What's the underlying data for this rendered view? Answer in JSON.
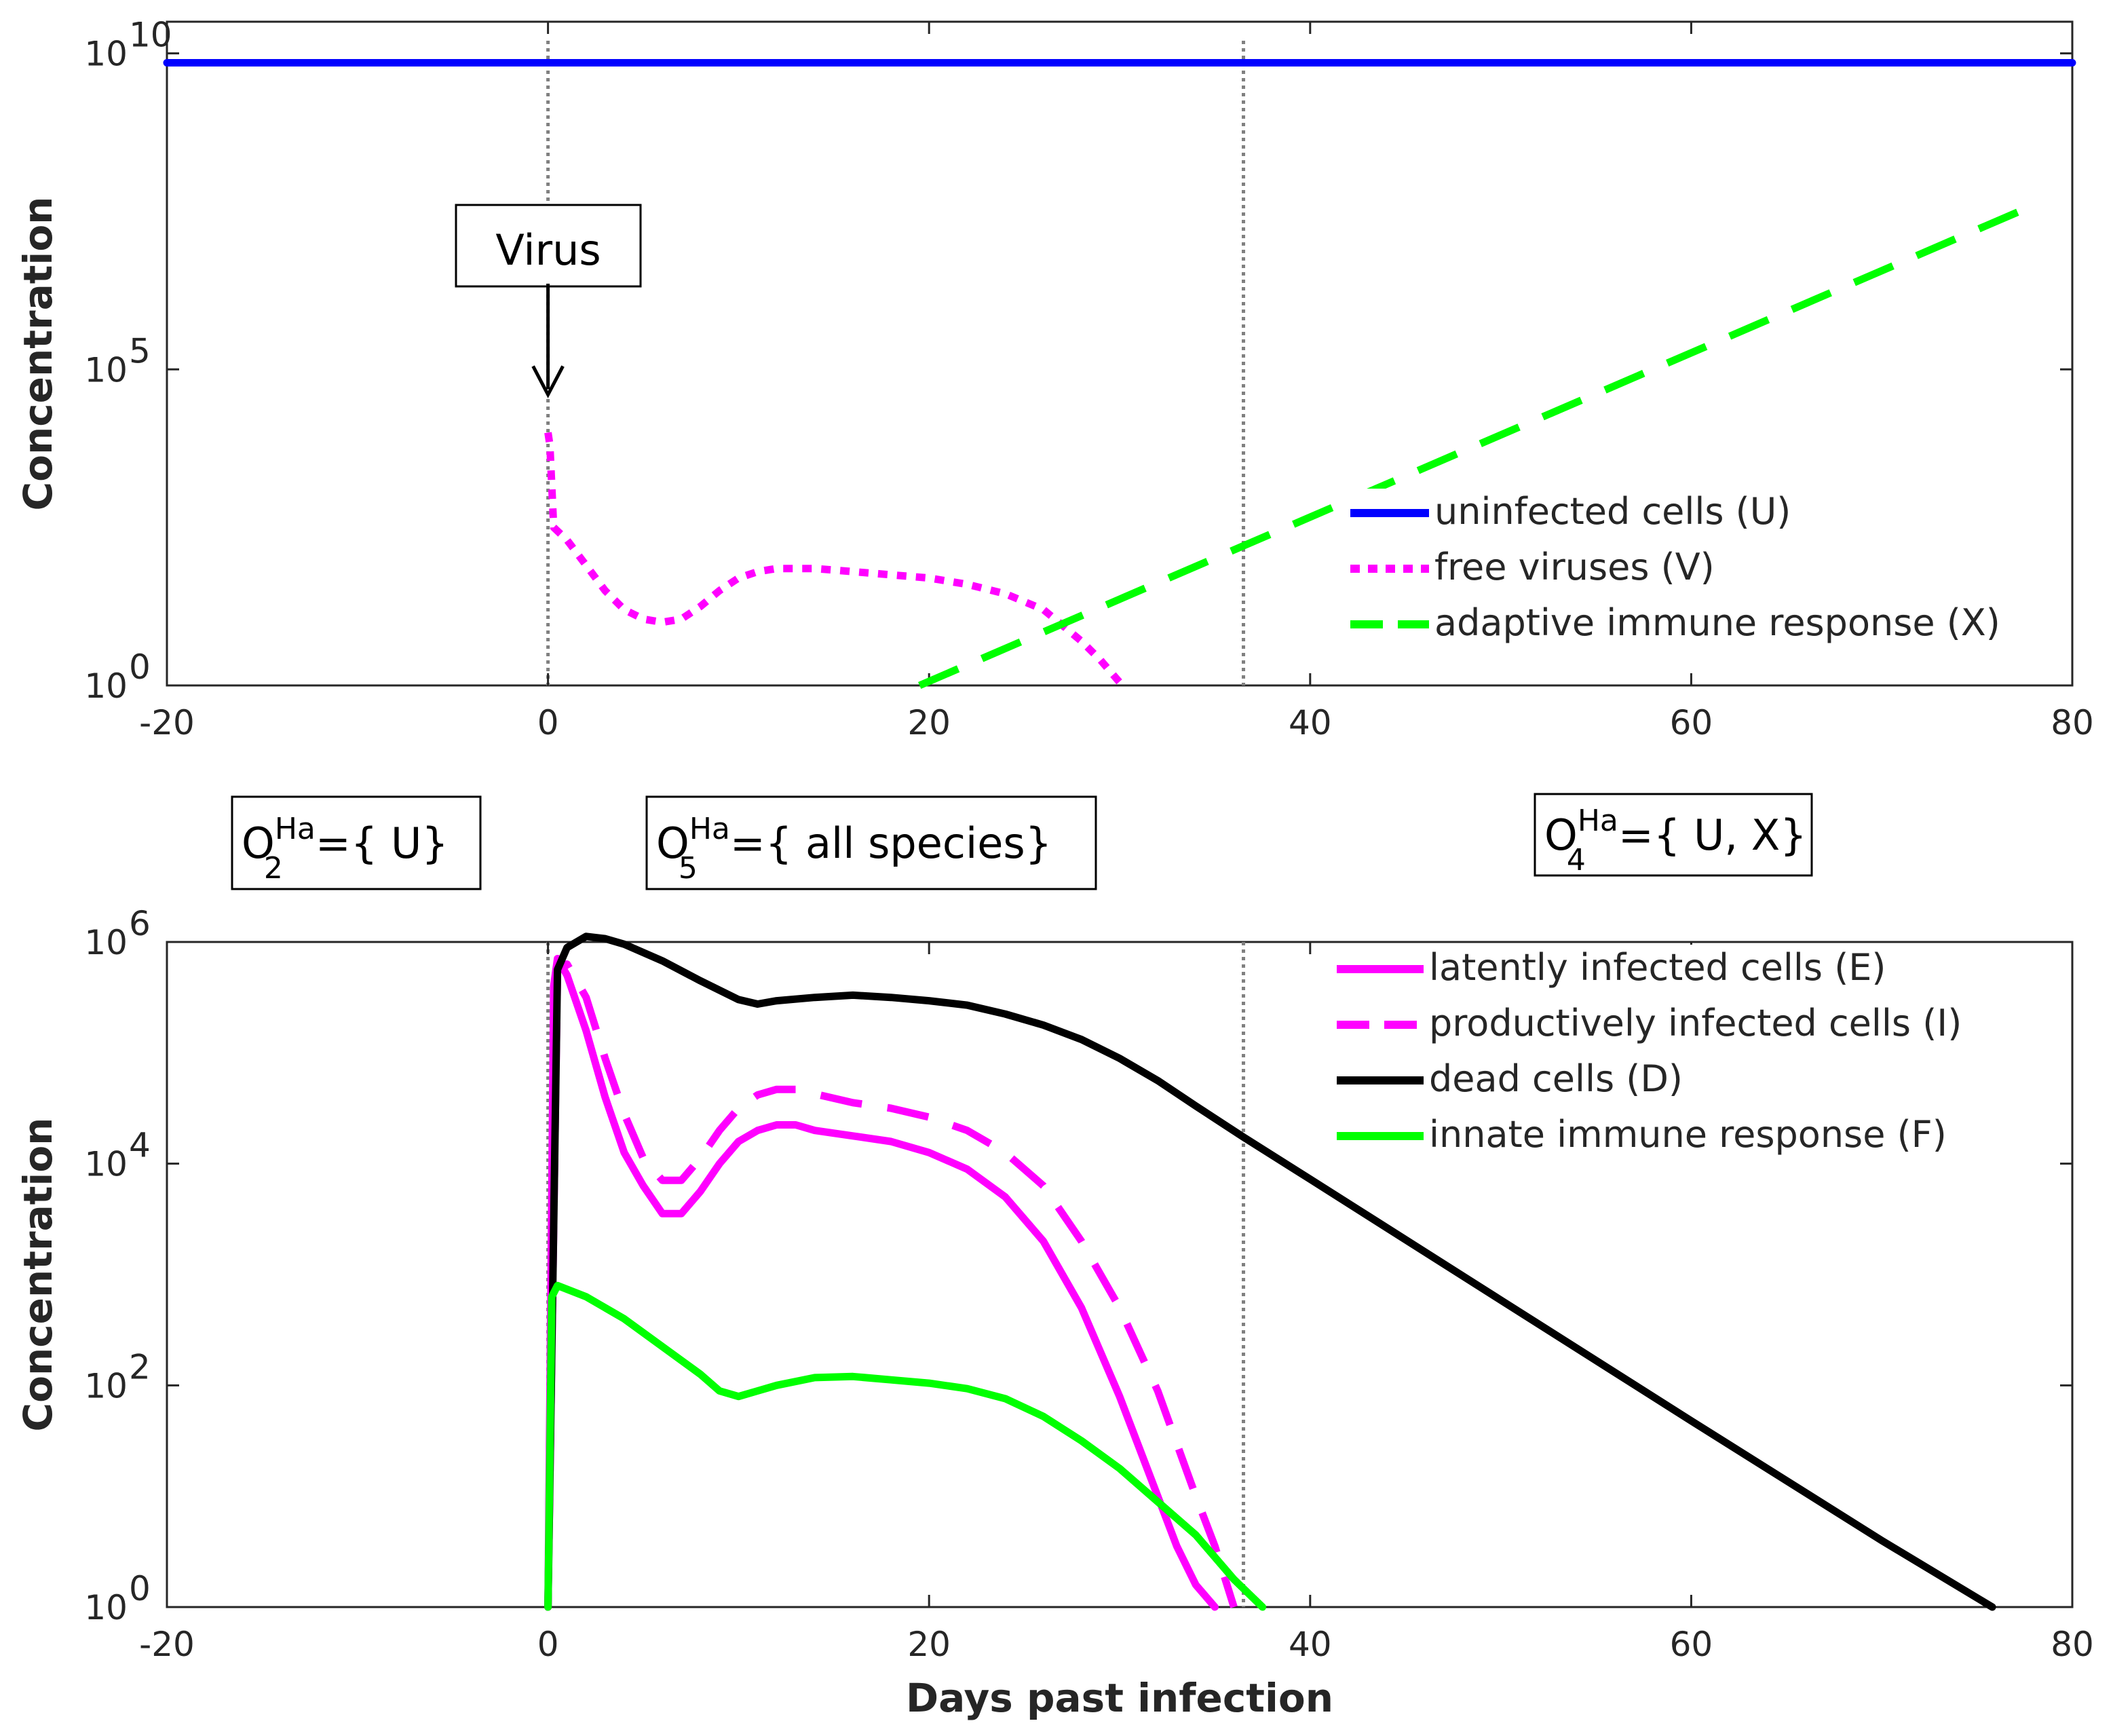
{
  "chart_data": [
    {
      "type": "line",
      "name": "top-panel",
      "yscale": "log",
      "xlim": [
        -20,
        80
      ],
      "ylim_log10": [
        0,
        10.5
      ],
      "xticks": [
        "-20",
        "0",
        "20",
        "40",
        "60",
        "80"
      ],
      "yticks": [
        {
          "exp": 0,
          "base": "10",
          "sup": "0"
        },
        {
          "exp": 5,
          "base": "10",
          "sup": "5"
        },
        {
          "exp": 10,
          "base": "10",
          "sup": "10"
        }
      ],
      "ylabel": "Concentration",
      "xlabel": "",
      "vlines": [
        0,
        36.5
      ],
      "annotation": {
        "text": "Virus",
        "x": 0,
        "y_log10": 4.6
      },
      "legend": {
        "position": "bottom-right"
      },
      "series": [
        {
          "name": "uninfected cells (U)",
          "color": "#0000ff",
          "style": "solid",
          "x": [
            -20,
            80
          ],
          "y_log10": [
            9.85,
            9.85
          ]
        },
        {
          "name": "free viruses (V)",
          "color": "#ff00ff",
          "style": "dotted",
          "x": [
            0,
            0.1,
            0.3,
            1,
            2,
            3,
            4,
            5,
            6,
            7,
            8,
            9,
            10,
            11,
            12,
            13,
            14,
            16,
            18,
            20,
            22,
            24,
            26,
            27,
            28,
            29,
            30
          ],
          "y_log10": [
            4.0,
            3.8,
            2.5,
            2.3,
            1.9,
            1.5,
            1.2,
            1.05,
            1.0,
            1.05,
            1.25,
            1.5,
            1.7,
            1.8,
            1.85,
            1.85,
            1.85,
            1.8,
            1.75,
            1.7,
            1.6,
            1.45,
            1.2,
            0.95,
            0.7,
            0.4,
            0.05
          ]
        },
        {
          "name": "adaptive immune response (X)",
          "color": "#00ff00",
          "style": "dashed",
          "x": [
            19.5,
            78
          ],
          "y_log10": [
            0.0,
            7.6
          ]
        }
      ]
    },
    {
      "type": "line",
      "name": "bottom-panel",
      "yscale": "log",
      "xlim": [
        -20,
        80
      ],
      "ylim_log10": [
        0,
        6
      ],
      "xticks": [
        "-20",
        "0",
        "20",
        "40",
        "60",
        "80"
      ],
      "yticks": [
        {
          "exp": 0,
          "base": "10",
          "sup": "0"
        },
        {
          "exp": 2,
          "base": "10",
          "sup": "2"
        },
        {
          "exp": 4,
          "base": "10",
          "sup": "4"
        },
        {
          "exp": 6,
          "base": "10",
          "sup": "6"
        }
      ],
      "ylabel": "Concentration",
      "xlabel": "Days past infection",
      "vlines": [
        0,
        36.5
      ],
      "legend": {
        "position": "top-right"
      },
      "series": [
        {
          "name": "latently infected cells (E)",
          "color": "#ff00ff",
          "style": "solid",
          "x": [
            0,
            0.3,
            0.5,
            1,
            2,
            3,
            4,
            5,
            6,
            7,
            8,
            9,
            10,
            11,
            12,
            13,
            14,
            16,
            18,
            20,
            22,
            24,
            26,
            28,
            30,
            32,
            33,
            34,
            35
          ],
          "y_log10": [
            0.0,
            5.6,
            5.85,
            5.7,
            5.2,
            4.6,
            4.1,
            3.8,
            3.55,
            3.55,
            3.75,
            4.0,
            4.2,
            4.3,
            4.35,
            4.35,
            4.3,
            4.25,
            4.2,
            4.1,
            3.95,
            3.7,
            3.3,
            2.7,
            1.9,
            1.0,
            0.55,
            0.2,
            0.0
          ]
        },
        {
          "name": "productively infected cells (I)",
          "color": "#ff00ff",
          "style": "dashed",
          "x": [
            0,
            0.5,
            1,
            2,
            3,
            4,
            5,
            6,
            7,
            8,
            9,
            10,
            11,
            12,
            13,
            14,
            16,
            18,
            20,
            22,
            24,
            26,
            28,
            30,
            32,
            34,
            35,
            36
          ],
          "y_log10": [
            0.0,
            5.75,
            5.8,
            5.5,
            4.95,
            4.45,
            4.05,
            3.85,
            3.85,
            4.05,
            4.3,
            4.5,
            4.62,
            4.67,
            4.67,
            4.63,
            4.55,
            4.5,
            4.42,
            4.3,
            4.1,
            3.8,
            3.3,
            2.7,
            1.95,
            1.0,
            0.55,
            0.0
          ]
        },
        {
          "name": "dead cells (D)",
          "color": "#000000",
          "style": "solid",
          "x": [
            0,
            0.5,
            1,
            2,
            3,
            4,
            6,
            8,
            10,
            11,
            12,
            14,
            16,
            18,
            20,
            22,
            24,
            26,
            28,
            30,
            32,
            34,
            36.5,
            40,
            50,
            60,
            70,
            75.8
          ],
          "y_log10": [
            0.0,
            5.75,
            5.95,
            6.05,
            6.03,
            5.98,
            5.83,
            5.65,
            5.48,
            5.44,
            5.47,
            5.5,
            5.52,
            5.5,
            5.47,
            5.43,
            5.35,
            5.25,
            5.12,
            4.95,
            4.75,
            4.52,
            4.24,
            3.86,
            2.77,
            1.68,
            0.6,
            0.0
          ]
        },
        {
          "name": "innate immune response (F)",
          "color": "#00ff00",
          "style": "solid",
          "x": [
            0,
            0.2,
            0.5,
            2,
            4,
            6,
            8,
            9,
            10,
            11,
            12,
            14,
            16,
            18,
            20,
            22,
            24,
            26,
            28,
            30,
            32,
            34,
            36,
            37.5
          ],
          "y_log10": [
            0.0,
            2.8,
            2.9,
            2.8,
            2.6,
            2.35,
            2.1,
            1.95,
            1.9,
            1.95,
            2.0,
            2.07,
            2.08,
            2.05,
            2.02,
            1.97,
            1.88,
            1.72,
            1.5,
            1.25,
            0.95,
            0.65,
            0.25,
            0.0
          ]
        }
      ]
    }
  ],
  "regions": [
    {
      "text": "O",
      "sub": "2",
      "sup": "Ha",
      "rest": "={ U}"
    },
    {
      "text": "O",
      "sub": "5",
      "sup": "Ha",
      "rest": "={ all species}"
    },
    {
      "text": "O",
      "sub": "4",
      "sup": "Ha",
      "rest": "={ U, X}"
    }
  ]
}
